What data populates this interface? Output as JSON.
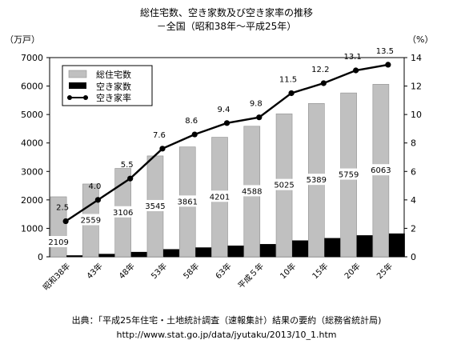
{
  "chart_data": {
    "type": "bar",
    "title": "総住宅数、空き家数及び空き家率の推移",
    "subtitle": "－全国（昭和38年～平成25年）",
    "left_unit": "（万戸）",
    "right_unit": "（%）",
    "categories": [
      "昭和38年",
      "43年",
      "48年",
      "53年",
      "58年",
      "63年",
      "平成５年",
      "10年",
      "15年",
      "20年",
      "25年"
    ],
    "series": [
      {
        "name": "総住宅数",
        "kind": "bar",
        "axis": "left",
        "color": "#c0c0c0",
        "values": [
          2109,
          2559,
          3106,
          3545,
          3861,
          4201,
          4588,
          5025,
          5389,
          5759,
          6063
        ]
      },
      {
        "name": "空き家数",
        "kind": "bar",
        "axis": "left",
        "color": "#000000",
        "values": [
          52,
          103,
          172,
          268,
          330,
          394,
          448,
          576,
          659,
          757,
          820
        ]
      },
      {
        "name": "空き家率",
        "kind": "line",
        "axis": "right",
        "color": "#000000",
        "values": [
          2.5,
          4.0,
          5.5,
          7.6,
          8.6,
          9.4,
          9.8,
          11.5,
          12.2,
          13.1,
          13.5
        ]
      }
    ],
    "left_axis": {
      "ylim": [
        0,
        7000
      ],
      "ticks": [
        0,
        1000,
        2000,
        3000,
        4000,
        5000,
        6000,
        7000
      ]
    },
    "right_axis": {
      "ylim": [
        0,
        14
      ],
      "ticks": [
        0,
        2,
        4,
        6,
        8,
        10,
        12,
        14
      ]
    },
    "grid": false,
    "legend_position": "top-left"
  },
  "source": {
    "line1": "出典：「平成25年住宅・土地統計調査（速報集計）結果の要約（総務省統計局)",
    "line2": "http://www.stat.go.jp/data/jyutaku/2013/10_1.htm"
  }
}
